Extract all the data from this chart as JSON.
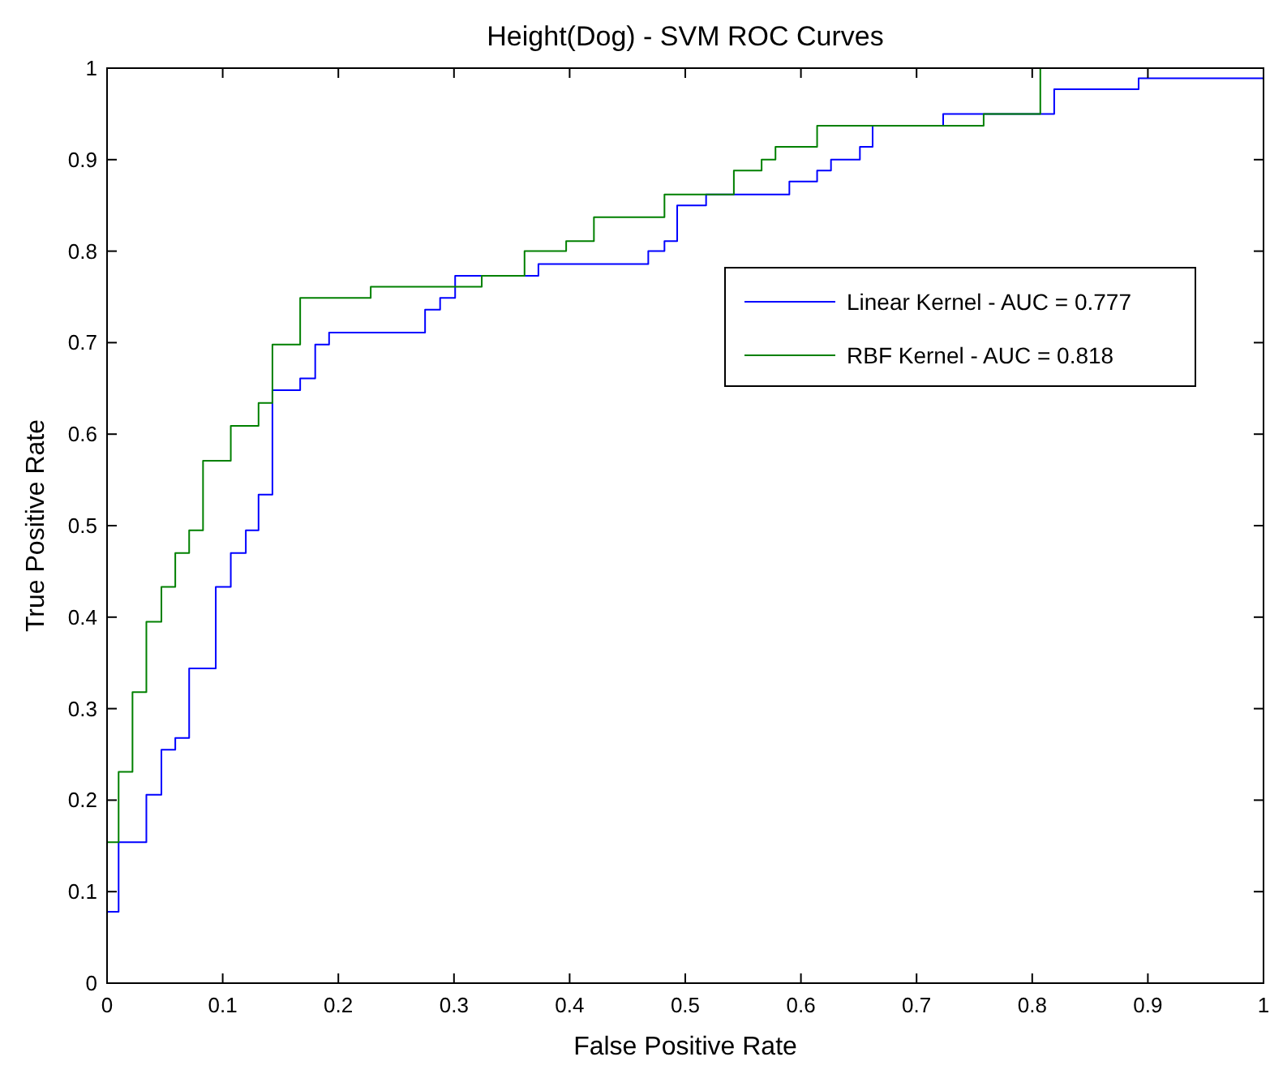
{
  "chart_data": {
    "type": "step",
    "title": "Height(Dog) - SVM ROC Curves",
    "xlabel": "False Positive Rate",
    "ylabel": "True Positive Rate",
    "xlim": [
      0,
      1
    ],
    "ylim": [
      0,
      1
    ],
    "xticks": [
      0,
      0.1,
      0.2,
      0.3,
      0.4,
      0.5,
      0.6,
      0.7,
      0.8,
      0.9,
      1
    ],
    "yticks": [
      0,
      0.1,
      0.2,
      0.3,
      0.4,
      0.5,
      0.6,
      0.7,
      0.8,
      0.9,
      1
    ],
    "grid": false,
    "legend": "top right",
    "marker": "none",
    "line_style": "solid",
    "series": [
      {
        "name": "Linear Kernel - AUC = 0.777",
        "color": "#0000ff",
        "x": [
          0,
          0.01,
          0.034,
          0.047,
          0.059,
          0.071,
          0.094,
          0.107,
          0.12,
          0.131,
          0.143,
          0.167,
          0.18,
          0.192,
          0.275,
          0.288,
          0.301,
          0.373,
          0.468,
          0.482,
          0.493,
          0.518,
          0.59,
          0.614,
          0.626,
          0.651,
          0.662,
          0.723,
          0.819,
          0.892,
          1
        ],
        "values": [
          0.078,
          0.154,
          0.206,
          0.255,
          0.268,
          0.344,
          0.433,
          0.47,
          0.495,
          0.534,
          0.648,
          0.661,
          0.698,
          0.711,
          0.736,
          0.749,
          0.773,
          0.786,
          0.8,
          0.811,
          0.85,
          0.862,
          0.876,
          0.888,
          0.9,
          0.914,
          0.937,
          0.95,
          0.977,
          0.989,
          0.989
        ]
      },
      {
        "name": "RBF Kernel - AUC = 0.818",
        "color": "#008000",
        "x": [
          0,
          0.01,
          0.022,
          0.034,
          0.047,
          0.059,
          0.071,
          0.083,
          0.107,
          0.131,
          0.143,
          0.167,
          0.228,
          0.324,
          0.361,
          0.397,
          0.421,
          0.482,
          0.542,
          0.566,
          0.578,
          0.614,
          0.758,
          0.807
        ],
        "values": [
          0.154,
          0.231,
          0.318,
          0.395,
          0.433,
          0.47,
          0.495,
          0.571,
          0.609,
          0.634,
          0.698,
          0.749,
          0.761,
          0.773,
          0.8,
          0.811,
          0.837,
          0.862,
          0.888,
          0.9,
          0.914,
          0.937,
          0.95,
          1
        ]
      }
    ]
  }
}
